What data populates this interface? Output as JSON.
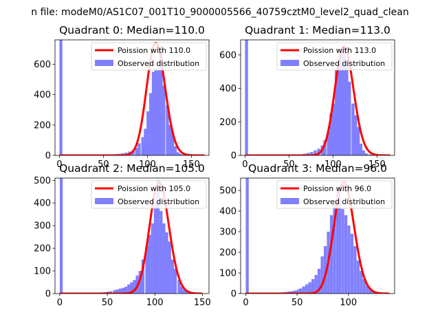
{
  "figure": {
    "suptitle": "n file: modeM0/AS1C07_001T10_9000005566_40759cztM0_level2_quad_clean"
  },
  "colors": {
    "poisson": "#ff0000",
    "observed": "#8080ff",
    "axes": "#000000",
    "background": "#ffffff"
  },
  "chart_data": [
    {
      "type": "bar",
      "title": "Quadrant 0: Median=110.0",
      "xlim": [
        -5,
        170
      ],
      "ylim": [
        0,
        760
      ],
      "xticks": [
        0,
        50,
        100,
        150
      ],
      "yticks": [
        0,
        200,
        400,
        600
      ],
      "legend": [
        "Poission with 110.0",
        "Observed distribution"
      ],
      "legend_position": "top-right",
      "poisson_mean": 110.0,
      "series": [
        {
          "name": "Observed distribution",
          "bin_width": 3.4,
          "x": [
            0,
            42,
            46,
            50,
            55,
            58,
            62,
            66,
            70,
            74,
            78,
            82,
            86,
            89,
            93,
            96,
            99,
            102,
            105,
            108,
            111,
            114,
            117,
            121,
            124,
            127,
            130,
            133,
            136,
            140
          ],
          "values": [
            760,
            3,
            3,
            4,
            5,
            6,
            8,
            10,
            14,
            18,
            25,
            35,
            50,
            80,
            120,
            175,
            290,
            410,
            550,
            560,
            560,
            720,
            460,
            330,
            200,
            150,
            60,
            20,
            10,
            5
          ]
        },
        {
          "name": "Poission with 110.0",
          "curve": "poisson",
          "mean": 110.0,
          "x_range": [
            0,
            165
          ],
          "peak": 740
        }
      ]
    },
    {
      "type": "bar",
      "title": "Quadrant 1: Median=113.0",
      "xlim": [
        -5,
        170
      ],
      "ylim": [
        0,
        690
      ],
      "xticks": [
        0,
        50,
        100,
        150
      ],
      "yticks": [
        0,
        200,
        400,
        600
      ],
      "legend": [
        "Poission with 113.0",
        "Observed distribution"
      ],
      "legend_position": "top-right",
      "poisson_mean": 113.0,
      "series": [
        {
          "name": "Observed distribution",
          "bin_width": 3.4,
          "x": [
            0,
            62,
            66,
            70,
            74,
            78,
            82,
            86,
            89,
            93,
            96,
            99,
            102,
            105,
            108,
            111,
            114,
            117,
            121,
            124,
            127,
            130,
            133,
            136,
            140,
            143
          ],
          "values": [
            690,
            6,
            10,
            15,
            20,
            30,
            40,
            60,
            90,
            140,
            250,
            310,
            510,
            560,
            620,
            650,
            560,
            440,
            310,
            240,
            170,
            70,
            30,
            12,
            6,
            3
          ]
        },
        {
          "name": "Poission with 113.0",
          "curve": "poisson",
          "mean": 113.0,
          "x_range": [
            0,
            165
          ],
          "peak": 650
        }
      ]
    },
    {
      "type": "bar",
      "title": "Quadrant 2: Median=105.0",
      "xlim": [
        -5,
        157
      ],
      "ylim": [
        0,
        510
      ],
      "xticks": [
        0,
        50,
        100,
        150
      ],
      "yticks": [
        0,
        100,
        200,
        300,
        400,
        500
      ],
      "legend": [
        "Poission with 105.0",
        "Observed distribution"
      ],
      "legend_position": "top-right",
      "poisson_mean": 105.0,
      "series": [
        {
          "name": "Observed distribution",
          "bin_width": 3.1,
          "x": [
            0,
            31,
            34,
            37,
            40,
            43,
            46,
            49,
            52,
            56,
            59,
            62,
            65,
            68,
            71,
            74,
            77,
            80,
            83,
            86,
            90,
            93,
            96,
            99,
            102,
            105,
            108,
            111,
            114,
            117,
            120,
            124,
            127,
            130,
            133,
            136
          ],
          "values": [
            510,
            2,
            2,
            3,
            4,
            5,
            6,
            8,
            10,
            15,
            18,
            22,
            25,
            30,
            40,
            50,
            60,
            80,
            100,
            150,
            210,
            260,
            310,
            400,
            500,
            365,
            310,
            270,
            230,
            150,
            110,
            60,
            30,
            15,
            8,
            4
          ]
        },
        {
          "name": "Poission with 105.0",
          "curve": "poisson",
          "mean": 105.0,
          "x_range": [
            0,
            150
          ],
          "peak": 490
        }
      ]
    },
    {
      "type": "bar",
      "title": "Quadrant 3: Median=96.0",
      "xlim": [
        -5,
        145
      ],
      "ylim": [
        0,
        560
      ],
      "xticks": [
        0,
        50,
        100
      ],
      "yticks": [
        0,
        100,
        200,
        300,
        400,
        500
      ],
      "legend": [
        "Poission with 96.0",
        "Observed distribution"
      ],
      "legend_position": "top-right",
      "poisson_mean": 96.0,
      "series": [
        {
          "name": "Observed distribution",
          "bin_width": 2.9,
          "x": [
            0,
            26,
            29,
            32,
            35,
            38,
            41,
            44,
            47,
            50,
            52,
            55,
            58,
            61,
            64,
            67,
            70,
            73,
            76,
            79,
            82,
            85,
            88,
            90,
            93,
            96,
            99,
            102,
            105,
            108,
            111,
            114,
            117,
            120,
            122,
            125
          ],
          "values": [
            560,
            3,
            4,
            5,
            6,
            8,
            10,
            12,
            15,
            20,
            25,
            35,
            45,
            55,
            70,
            90,
            120,
            180,
            230,
            300,
            380,
            440,
            510,
            470,
            410,
            380,
            330,
            290,
            230,
            160,
            110,
            70,
            40,
            20,
            10,
            4
          ]
        },
        {
          "name": "Poission with 96.0",
          "curve": "poisson",
          "mean": 96.0,
          "x_range": [
            0,
            140
          ],
          "peak": 540
        }
      ]
    }
  ]
}
